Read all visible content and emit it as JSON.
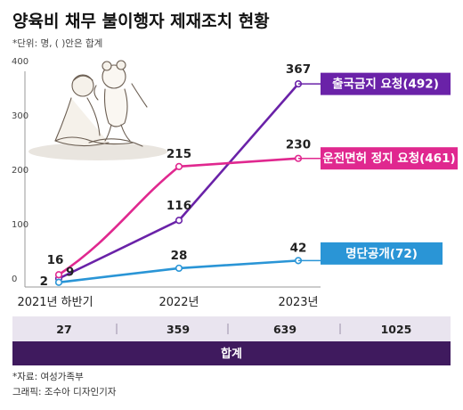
{
  "title": "양육비 채무 불이행자 제재조치 현황",
  "subtitle": "*단위: 명, ( )안은 합계",
  "chart_data": {
    "type": "line",
    "title": "양육비 채무 불이행자 제재조치 현황",
    "categories": [
      "2021년 하반기",
      "2022년",
      "2023년"
    ],
    "ylim": [
      0,
      400
    ],
    "yticks": [
      "0",
      "100",
      "200",
      "300",
      "400"
    ],
    "grid": false,
    "series": [
      {
        "name": "출국금지 요청(492)",
        "values": [
          9,
          116,
          367
        ],
        "color": "#6a22a8"
      },
      {
        "name": "운전면허 정지 요청(461)",
        "values": [
          16,
          215,
          230
        ],
        "color": "#e0288f"
      },
      {
        "name": "명단공개(72)",
        "values": [
          2,
          28,
          42
        ],
        "color": "#2a95d6"
      }
    ],
    "totals": {
      "label": "합계",
      "values": [
        "27",
        "359",
        "639",
        "1025"
      ]
    }
  },
  "colors": {
    "axis": "#999999",
    "totals_bar": "#e9e4ef",
    "totals_label_bg": "#3f1a5e"
  },
  "footer": {
    "source": "*자료: 여성가족부",
    "credit": "그래픽: 조수아 디자인기자"
  }
}
